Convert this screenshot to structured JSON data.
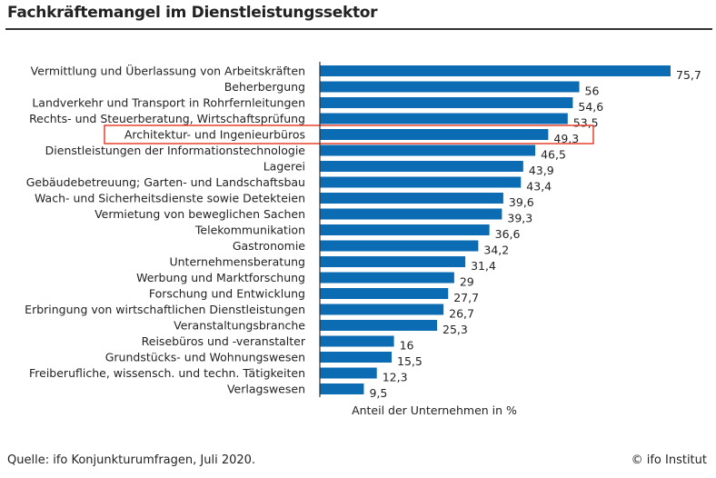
{
  "title": "Fachkräftemangel im Dienstleistungssektor",
  "source": "Quelle: ifo Konjunkturumfragen, Juli 2020.",
  "copyright": "© ifo Institut",
  "colors": {
    "bar": "#0b6cb4",
    "highlight": "#e8412c",
    "axis": "#333333"
  },
  "chart_data": {
    "type": "bar",
    "orientation": "horizontal",
    "title": "Fachkräftemangel im Dienstleistungssektor",
    "xlabel": "Anteil der Unternehmen in %",
    "xlim": [
      0,
      80
    ],
    "grid": false,
    "highlighted_category": "Architektur- und Ingenieurbüros",
    "categories": [
      "Vermittlung und Überlassung von Arbeitskräften",
      "Beherbergung",
      "Landverkehr und Transport in Rohrfernleitungen",
      "Rechts- und Steuerberatung, Wirtschaftsprüfung",
      "Architektur- und Ingenieurbüros",
      "Dienstleistungen der Informationstechnologie",
      "Lagerei",
      "Gebäudebetreuung; Garten- und Landschaftsbau",
      "Wach- und Sicherheitsdienste sowie Detekteien",
      "Vermietung von beweglichen Sachen",
      "Telekommunikation",
      "Gastronomie",
      "Unternehmensberatung",
      "Werbung und Marktforschung",
      "Forschung und Entwicklung",
      "Erbringung von wirtschaftlichen Dienstleistungen",
      "Veranstaltungsbranche",
      "Reisebüros und -veranstalter",
      "Grundstücks- und Wohnungswesen",
      "Freiberufliche, wissensch. und techn. Tätigkeiten",
      "Verlagswesen"
    ],
    "values": [
      75.7,
      56,
      54.6,
      53.5,
      49.3,
      46.5,
      43.9,
      43.4,
      39.6,
      39.3,
      36.6,
      34.2,
      31.4,
      29,
      27.7,
      26.7,
      25.3,
      16,
      15.5,
      12.3,
      9.5
    ],
    "value_labels": [
      "75,7",
      "56",
      "54,6",
      "53,5",
      "49,3",
      "46,5",
      "43,9",
      "43,4",
      "39,6",
      "39,3",
      "36,6",
      "34,2",
      "31,4",
      "29",
      "27,7",
      "26,7",
      "25,3",
      "16",
      "15,5",
      "12,3",
      "9,5"
    ]
  }
}
